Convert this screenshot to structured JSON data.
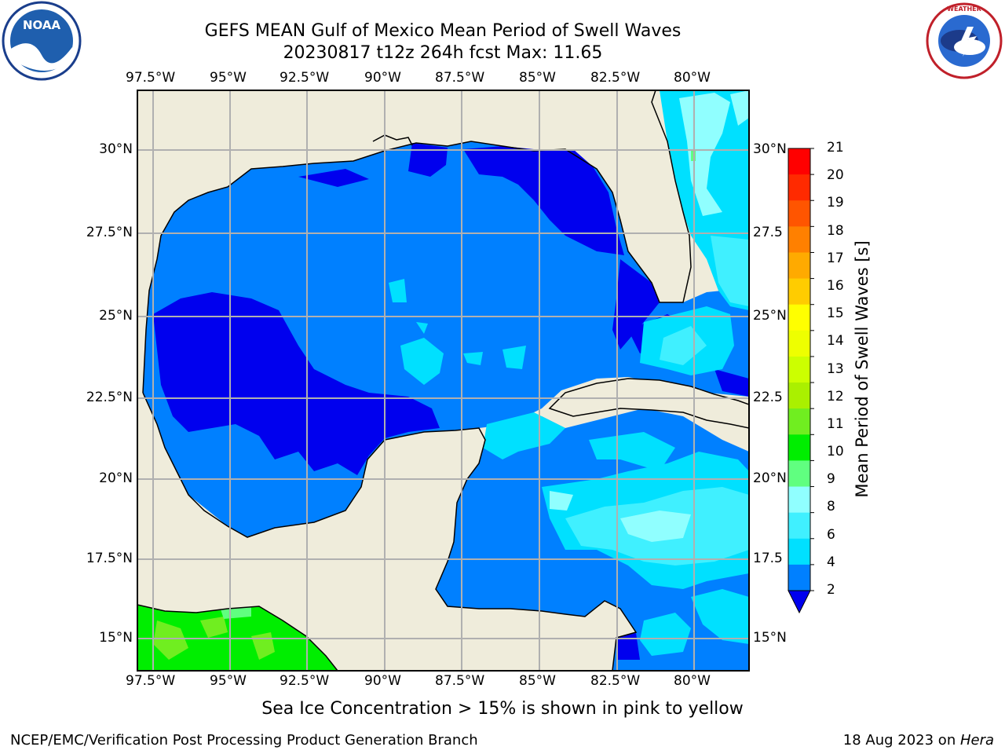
{
  "header": {
    "title_line1": "GEFS MEAN Gulf of Mexico Mean Period of Swell Waves",
    "title_line2": "20230817 t12z 264h fcst   Max: 11.65"
  },
  "logos": {
    "left": {
      "name": "noaa-logo",
      "text": "NOAA"
    },
    "right": {
      "name": "nws-logo",
      "text": "NATIONAL WEATHER SERVICE"
    }
  },
  "map": {
    "lon_labels": [
      "97.5°W",
      "95°W",
      "92.5°W",
      "90°W",
      "87.5°W",
      "85°W",
      "82.5°W",
      "80°W"
    ],
    "lat_labels_left": [
      "30°N",
      "27.5°N",
      "25°N",
      "22.5°N",
      "20°N",
      "17.5°N",
      "15°N"
    ],
    "lat_labels_right": [
      "30°N",
      "27.5",
      "25°N",
      "22.5",
      "20°N",
      "17.5",
      "15°N"
    ],
    "colors": {
      "land": "#efecdb",
      "gridline": "#b0b0b0",
      "p2_4": "#0080ff",
      "p0_2": "#0000ee",
      "p4_6": "#00e0ff",
      "p6_8": "#40f0ff",
      "p8_9": "#90ffff",
      "p9_10": "#60ff80",
      "p10_11": "#00ee00",
      "p11_12": "#70ee20"
    }
  },
  "colorbar": {
    "label": "Mean Period of Swell Waves [s]",
    "ticks": [
      "21",
      "20",
      "19",
      "18",
      "17",
      "16",
      "15",
      "14",
      "13",
      "12",
      "11",
      "10",
      "9",
      "8",
      "6",
      "4",
      "2"
    ],
    "colors": [
      "#ff0000",
      "#ff2a00",
      "#ff5500",
      "#ff8000",
      "#ffaa00",
      "#ffcc00",
      "#ffff00",
      "#eeff00",
      "#ccff00",
      "#aaf000",
      "#70ee20",
      "#00ee00",
      "#60ff80",
      "#90ffff",
      "#40f0ff",
      "#00e0ff",
      "#0080ff"
    ],
    "extend_color": "#0000ee"
  },
  "footer": {
    "note": "Sea Ice Concentration > 15% is shown in pink to yellow",
    "left": "NCEP/EMC/Verification Post Processing Product Generation Branch",
    "right_prefix": "18 Aug 2023 on ",
    "right_host": "Hera"
  }
}
